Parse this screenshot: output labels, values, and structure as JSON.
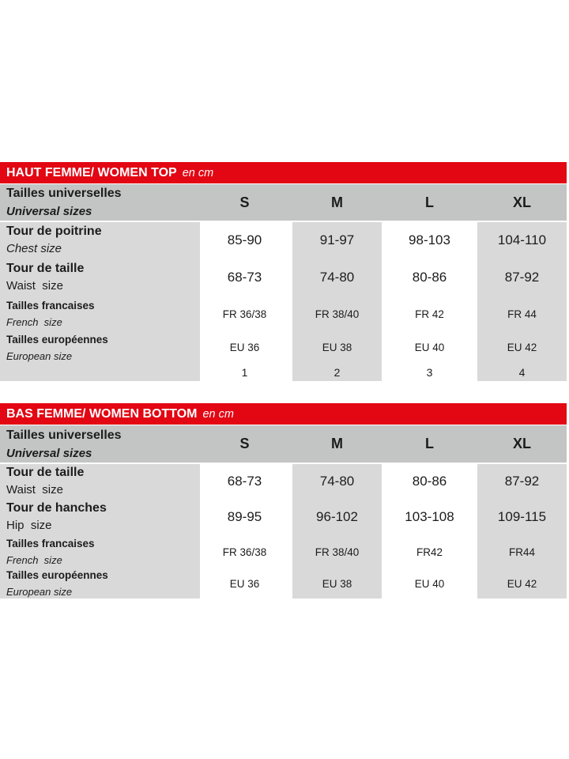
{
  "colors": {
    "title_bar_red": "#e30613",
    "header_band_gray": "#c3c4c4",
    "cell_gray": "#d9d9d9",
    "text": "#1c1c1c",
    "title_text": "#ffffff"
  },
  "tables": [
    {
      "title": "HAUT FEMME/ WOMEN TOP",
      "unit": "en cm",
      "header": {
        "label_fr": "Tailles universelles",
        "label_en": "Universal sizes",
        "sizes": [
          "S",
          "M",
          "L",
          "XL"
        ]
      },
      "rows": [
        {
          "label_fr": "Tour de poitrine",
          "label_en": "Chest size",
          "values": [
            "85-90",
            "91-97",
            "98-103",
            "104-110"
          ]
        },
        {
          "label_fr": "Tour de taille",
          "label_en": "Waist  size",
          "values": [
            "68-73",
            "74-80",
            "80-86",
            "87-92"
          ]
        },
        {
          "label_fr": "Tailles francaises",
          "label_en": "French  size",
          "values": [
            "FR 36/38",
            "FR 38/40",
            "FR 42",
            "FR 44"
          ]
        },
        {
          "label_fr": "Tailles européennes",
          "label_en": "European size",
          "values": [
            "EU 36",
            "EU 38",
            "EU 40",
            "EU 42"
          ]
        },
        {
          "label_fr": "",
          "label_en": "",
          "values": [
            "1",
            "2",
            "3",
            "4"
          ]
        }
      ]
    },
    {
      "title": "BAS FEMME/ WOMEN BOTTOM",
      "unit": "en cm",
      "header": {
        "label_fr": "Tailles universelles",
        "label_en": "Universal sizes",
        "sizes": [
          "S",
          "M",
          "L",
          "XL"
        ]
      },
      "rows": [
        {
          "label_fr": "Tour de taille",
          "label_en": "Waist  size",
          "values": [
            "68-73",
            "74-80",
            "80-86",
            "87-92"
          ]
        },
        {
          "label_fr": "Tour de hanches",
          "label_en": "Hip  size",
          "values": [
            "89-95",
            "96-102",
            "103-108",
            "109-115"
          ]
        },
        {
          "label_fr": "Tailles francaises",
          "label_en": "French  size",
          "values": [
            "FR 36/38",
            "FR 38/40",
            "FR42",
            "FR44"
          ]
        },
        {
          "label_fr": "Tailles européennes",
          "label_en": "European size",
          "values": [
            "EU 36",
            "EU 38",
            "EU 40",
            "EU 42"
          ]
        }
      ]
    }
  ]
}
